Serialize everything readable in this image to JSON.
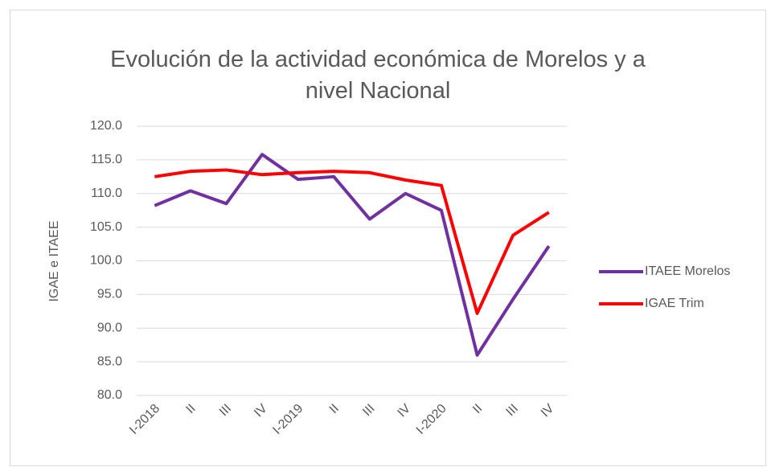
{
  "chart_data": {
    "type": "line",
    "title": "Evolución de la actividad económica de Morelos y a nivel Nacional",
    "y_label": "IGAE e ITAEE",
    "categories": [
      "I-2018",
      "II",
      "III",
      "IV",
      "I-2019",
      "II",
      "III",
      "IV",
      "I-2020",
      "II",
      "III",
      "IV"
    ],
    "series": [
      {
        "name": "ITAEE Morelos",
        "color": "#7030a0",
        "values": [
          108.2,
          110.4,
          108.5,
          115.8,
          112.1,
          112.5,
          106.2,
          110.0,
          107.5,
          86.0,
          94.3,
          102.2
        ]
      },
      {
        "name": "IGAE Trim",
        "color": "#ff0000",
        "values": [
          112.5,
          113.3,
          113.5,
          112.8,
          113.1,
          113.3,
          113.1,
          112.0,
          111.2,
          92.2,
          103.8,
          107.2
        ]
      }
    ],
    "ylim": [
      80,
      120
    ],
    "yticks": [
      {
        "value": 80,
        "label": "80.0"
      },
      {
        "value": 85,
        "label": "85.0"
      },
      {
        "value": 90,
        "label": "90.0"
      },
      {
        "value": 95,
        "label": "95.0"
      },
      {
        "value": 100,
        "label": "100.0"
      },
      {
        "value": 105,
        "label": "105.0"
      },
      {
        "value": 110,
        "label": "110.0"
      },
      {
        "value": 115,
        "label": "115.0"
      },
      {
        "value": 120,
        "label": "120.0"
      }
    ],
    "grid": true,
    "legend": "right"
  }
}
